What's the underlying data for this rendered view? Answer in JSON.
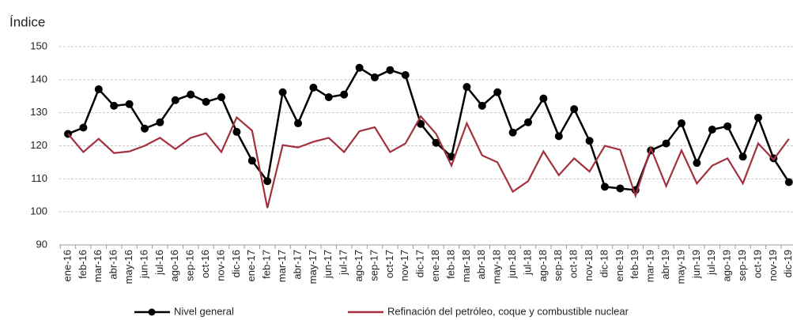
{
  "chart_data": {
    "type": "line",
    "y_label": "Índice",
    "categories": [
      "ene-16",
      "feb-16",
      "mar-16",
      "abr-16",
      "may-16",
      "jun-16",
      "jul-16",
      "ago-16",
      "sep-16",
      "oct-16",
      "nov-16",
      "dic-16",
      "ene-17",
      "feb-17",
      "mar-17",
      "abr-17",
      "may-17",
      "jun-17",
      "jul-17",
      "ago-17",
      "sep-17",
      "oct-17",
      "nov-17",
      "dic-17",
      "ene-18",
      "feb-18",
      "mar-18",
      "abr-18",
      "may-18",
      "jun-18",
      "jul-18",
      "ago-18",
      "sep-18",
      "oct-18",
      "nov-18",
      "dic-18",
      "ene-19",
      "feb-19",
      "mar-19",
      "abr-19",
      "may-19",
      "jun-19",
      "jul-19",
      "ago-19",
      "sep-19",
      "oct-19",
      "nov-19",
      "dic-19"
    ],
    "series": [
      {
        "name": "Nivel general",
        "color": "#000000",
        "markers": true,
        "values": [
          123.6,
          125.5,
          137.1,
          132.1,
          132.6,
          125.2,
          127.1,
          133.8,
          135.5,
          133.3,
          134.7,
          124.2,
          115.5,
          109.3,
          136.2,
          126.8,
          137.6,
          134.7,
          135.5,
          143.6,
          140.7,
          142.9,
          141.4,
          126.6,
          120.9,
          116.7,
          137.8,
          132.1,
          136.2,
          124.0,
          127.1,
          134.3,
          122.9,
          131.1,
          121.5,
          107.6,
          107.1,
          106.6,
          118.6,
          120.7,
          126.8,
          114.8,
          124.9,
          125.9,
          116.7,
          128.5,
          116.2,
          109.0
        ]
      },
      {
        "name": "Refinación del petróleo, coque y combustible nuclear",
        "color": "#a3303f",
        "markers": false,
        "values": [
          123.6,
          118.1,
          122.1,
          117.8,
          118.3,
          120.0,
          122.4,
          119.0,
          122.4,
          123.8,
          118.1,
          128.6,
          124.6,
          101.2,
          120.2,
          119.5,
          121.2,
          122.4,
          118.1,
          124.4,
          125.6,
          118.1,
          120.7,
          128.9,
          123.6,
          114.0,
          126.8,
          117.1,
          115.0,
          106.1,
          109.3,
          118.3,
          111.1,
          116.2,
          112.2,
          120.0,
          118.8,
          104.9,
          119.3,
          107.8,
          118.6,
          108.6,
          114.0,
          116.2,
          108.6,
          120.7,
          115.8,
          122.1
        ]
      }
    ],
    "ylim": [
      90,
      150
    ],
    "yticks": [
      90,
      100,
      110,
      120,
      130,
      140,
      150
    ],
    "grid": true
  }
}
